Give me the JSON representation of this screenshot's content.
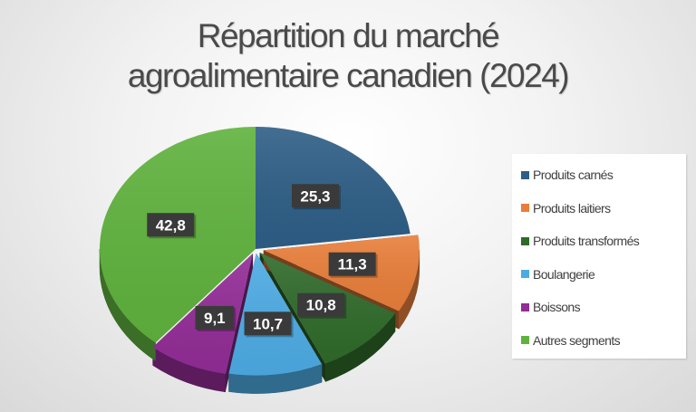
{
  "title_lines": [
    "Répartition du marché",
    "agroalimentaire canadien (2024)"
  ],
  "chart_data": {
    "type": "pie",
    "style": "3d-exploded",
    "title": "Répartition du marché agroalimentaire canadien (2024)",
    "labels": [
      "Produits carnés",
      "Produits laitiers",
      "Produits transformés",
      "Boulangerie",
      "Boissons",
      "Autres segments"
    ],
    "values": [
      25.3,
      11.3,
      10.8,
      10.7,
      9.1,
      42.8
    ],
    "value_labels": [
      "25,3",
      "11,3",
      "10,8",
      "10,7",
      "9,1",
      "42,8"
    ],
    "colors": [
      "#2e5e86",
      "#e87e3a",
      "#2f6a2a",
      "#4dabe3",
      "#922c96",
      "#5fb23d"
    ],
    "legend_position": "right"
  }
}
